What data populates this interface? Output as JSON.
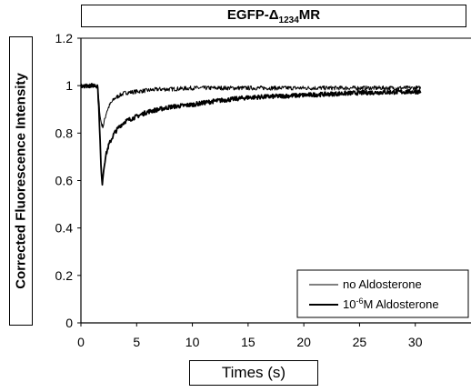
{
  "chart_data": {
    "type": "line",
    "title_main": "EGFP-Δ",
    "title_sub": "1234",
    "title_tail": "MR",
    "xlabel": "Times (s)",
    "ylabel": "Corrected Fluorescence Intensity",
    "xlim": [
      0,
      35
    ],
    "ylim": [
      0,
      1.2
    ],
    "xticks": [
      0,
      5,
      10,
      15,
      20,
      25,
      30
    ],
    "yticks": [
      0,
      0.2,
      0.4,
      0.6,
      0.8,
      1,
      1.2
    ],
    "yticklabels": [
      "0",
      "0.2",
      "0.4",
      "0.6",
      "0.8",
      "1",
      "1.2"
    ],
    "legend_position": "bottom-right",
    "series": [
      {
        "name": "no Aldosterone",
        "color": "#000000",
        "x": [
          0,
          1.5,
          1.6,
          1.75,
          1.9,
          2.0,
          2.3,
          2.6,
          3.0,
          3.5,
          4.0,
          5,
          6,
          7,
          8,
          10,
          12,
          15,
          20,
          25,
          30.5
        ],
        "y": [
          1.0,
          1.0,
          0.94,
          0.86,
          0.83,
          0.83,
          0.89,
          0.92,
          0.945,
          0.96,
          0.97,
          0.975,
          0.98,
          0.985,
          0.985,
          0.99,
          0.99,
          0.99,
          0.99,
          0.99,
          0.99
        ]
      },
      {
        "name": "10⁻⁶M Aldosterone",
        "color": "#000000",
        "x": [
          0,
          1.5,
          1.65,
          1.8,
          1.9,
          2.0,
          2.2,
          2.5,
          3.0,
          3.5,
          4,
          5,
          6,
          7,
          8,
          10,
          12,
          15,
          20,
          25,
          30.5
        ],
        "y": [
          1.0,
          1.0,
          0.86,
          0.66,
          0.58,
          0.63,
          0.7,
          0.75,
          0.8,
          0.83,
          0.85,
          0.87,
          0.89,
          0.9,
          0.91,
          0.92,
          0.935,
          0.95,
          0.96,
          0.97,
          0.975
        ]
      }
    ],
    "legend": [
      {
        "label": "no Aldosterone",
        "stroke": 1
      },
      {
        "label_main": "10",
        "label_sup": "-6",
        "label_tail": "M Aldosterone",
        "stroke": 2
      }
    ]
  }
}
